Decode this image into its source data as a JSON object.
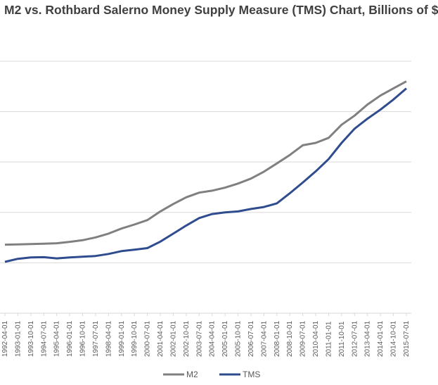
{
  "chart_data": {
    "type": "line",
    "title": "M2 vs. Rothbard Salerno Money Supply Measure (TMS) Chart, Billions of $",
    "xlabel": "",
    "ylabel": "",
    "ylim": [
      0,
      14000
    ],
    "grid": true,
    "legend_position": "bottom",
    "x": [
      "1992-04-01",
      "1993-01-01",
      "1993-10-01",
      "1994-07-01",
      "1995-04-01",
      "1996-01-01",
      "1996-10-01",
      "1997-07-01",
      "1998-04-01",
      "1999-01-01",
      "1999-10-01",
      "2000-07-01",
      "2001-04-01",
      "2002-01-01",
      "2002-10-01",
      "2003-07-01",
      "2004-04-01",
      "2005-01-01",
      "2005-10-01",
      "2006-07-01",
      "2007-04-01",
      "2008-01-01",
      "2008-10-01",
      "2009-07-01",
      "2010-04-01",
      "2011-01-01",
      "2011-10-01",
      "2012-07-01",
      "2013-04-01",
      "2014-01-01",
      "2014-10-01",
      "2015-07-01"
    ],
    "series": [
      {
        "name": "M2",
        "color": "#808080",
        "values": [
          3400,
          3410,
          3430,
          3450,
          3470,
          3540,
          3620,
          3760,
          3950,
          4200,
          4400,
          4620,
          5050,
          5420,
          5750,
          5980,
          6080,
          6230,
          6430,
          6680,
          7020,
          7430,
          7850,
          8330,
          8450,
          8700,
          9350,
          9800,
          10350,
          10800,
          11150,
          11500
        ]
      },
      {
        "name": "TMS",
        "color": "#2F4C8E",
        "values": [
          2550,
          2700,
          2770,
          2780,
          2720,
          2770,
          2800,
          2840,
          2940,
          3080,
          3150,
          3230,
          3550,
          3950,
          4350,
          4720,
          4920,
          5000,
          5050,
          5170,
          5270,
          5450,
          5950,
          6480,
          7040,
          7650,
          8450,
          9150,
          9650,
          10100,
          10600,
          11150
        ]
      }
    ],
    "legend": [
      "M2",
      "TMS"
    ]
  }
}
